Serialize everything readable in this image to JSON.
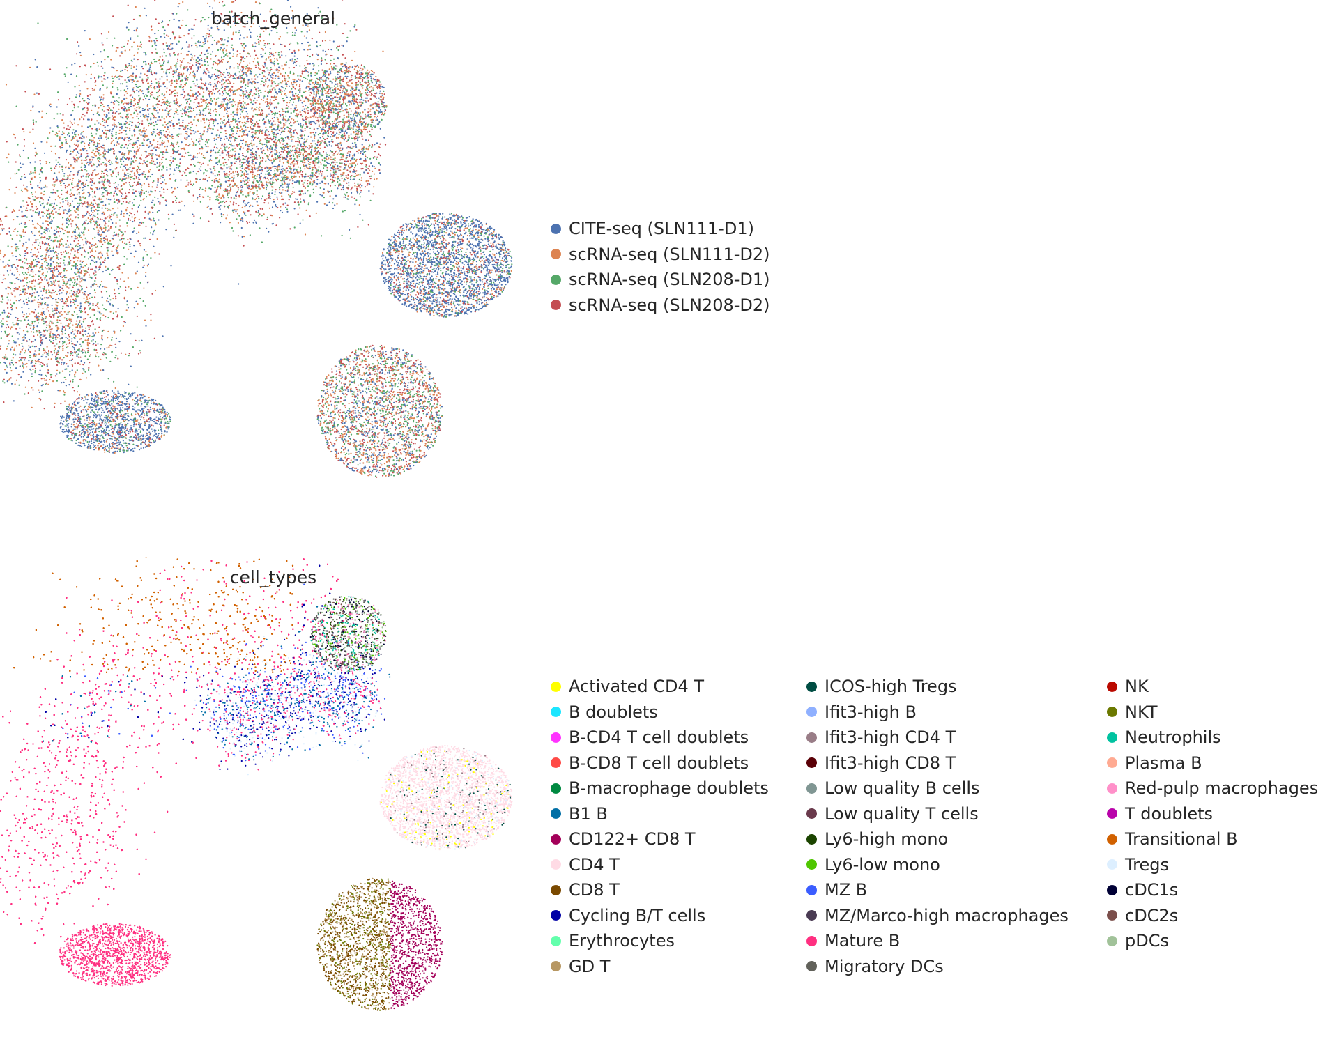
{
  "chart_data": [
    {
      "type": "scatter",
      "title": "batch_general",
      "xlabel": "",
      "ylabel": "",
      "grid": false,
      "legend_position": "right",
      "series": [
        {
          "name": "CITE-seq (SLN111-D1)",
          "color": "#4c72b0"
        },
        {
          "name": "scRNA-seq (SLN111-D2)",
          "color": "#dd8452"
        },
        {
          "name": "scRNA-seq (SLN208-D1)",
          "color": "#55a868"
        },
        {
          "name": "scRNA-seq (SLN208-D2)",
          "color": "#c44e52"
        }
      ]
    },
    {
      "type": "scatter",
      "title": "cell_types",
      "xlabel": "",
      "ylabel": "",
      "grid": false,
      "legend_position": "right",
      "series": [
        {
          "name": "Activated CD4 T",
          "color": "#ffff00"
        },
        {
          "name": "B doublets",
          "color": "#1ce6ff"
        },
        {
          "name": "B-CD4 T cell doublets",
          "color": "#ff34ff"
        },
        {
          "name": "B-CD8 T cell doublets",
          "color": "#ff4a46"
        },
        {
          "name": "B-macrophage doublets",
          "color": "#008941"
        },
        {
          "name": "B1 B",
          "color": "#006fa6"
        },
        {
          "name": "CD122+ CD8 T",
          "color": "#a30059"
        },
        {
          "name": "CD4 T",
          "color": "#ffdbe5"
        },
        {
          "name": "CD8 T",
          "color": "#7a4900"
        },
        {
          "name": "Cycling B/T cells",
          "color": "#0000a6"
        },
        {
          "name": "Erythrocytes",
          "color": "#63ffac"
        },
        {
          "name": "GD T",
          "color": "#b79762"
        },
        {
          "name": "ICOS-high Tregs",
          "color": "#004d43"
        },
        {
          "name": "Ifit3-high B",
          "color": "#8fb0ff"
        },
        {
          "name": "Ifit3-high CD4 T",
          "color": "#997d87"
        },
        {
          "name": "Ifit3-high CD8 T",
          "color": "#5a0007"
        },
        {
          "name": "Low quality B cells",
          "color": "#809693"
        },
        {
          "name": "Low quality T cells",
          "color": "#6a3a4c"
        },
        {
          "name": "Ly6-high mono",
          "color": "#1b4400"
        },
        {
          "name": "Ly6-low mono",
          "color": "#4fc601"
        },
        {
          "name": "MZ B",
          "color": "#3b5dff"
        },
        {
          "name": "MZ/Marco-high macrophages",
          "color": "#4a3b53"
        },
        {
          "name": "Mature B",
          "color": "#ff2f80"
        },
        {
          "name": "Migratory DCs",
          "color": "#61615a"
        },
        {
          "name": "NK",
          "color": "#ba0900"
        },
        {
          "name": "NKT",
          "color": "#6b7900"
        },
        {
          "name": "Neutrophils",
          "color": "#00c2a0"
        },
        {
          "name": "Plasma B",
          "color": "#ffaa92"
        },
        {
          "name": "Red-pulp macrophages",
          "color": "#ff90c9"
        },
        {
          "name": "T doublets",
          "color": "#b903aa"
        },
        {
          "name": "Transitional B",
          "color": "#d16100"
        },
        {
          "name": "Tregs",
          "color": "#ddefff"
        },
        {
          "name": "cDC1s",
          "color": "#000035"
        },
        {
          "name": "cDC2s",
          "color": "#7b4f4b"
        },
        {
          "name": "pDCs",
          "color": "#a1c299"
        }
      ]
    }
  ]
}
